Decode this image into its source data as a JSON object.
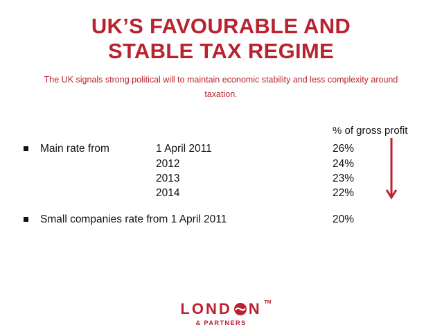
{
  "title": {
    "line1": "UK’S FAVOURABLE AND",
    "line2": "STABLE TAX REGIME"
  },
  "subtitle": "The UK signals strong political will to maintain economic stability and less complexity around taxation.",
  "table": {
    "column_header": "% of gross profit",
    "main_rate": {
      "label": "Main rate from",
      "rows": [
        {
          "date": "1 April  2011",
          "value": "26%"
        },
        {
          "date": "2012",
          "value": "24%"
        },
        {
          "date": "2013",
          "value": "23%"
        },
        {
          "date": "2014",
          "value": "22%"
        }
      ]
    },
    "small_rate": {
      "label": "Small companies rate from 1 April 2011",
      "value": "20%"
    }
  },
  "arrow": {
    "icon": "down-arrow-icon",
    "color": "#b8232f"
  },
  "logo": {
    "word_start": "LOND",
    "word_end": "N",
    "tm": "TM",
    "subtext": "& PARTNERS",
    "color": "#b8232f"
  }
}
